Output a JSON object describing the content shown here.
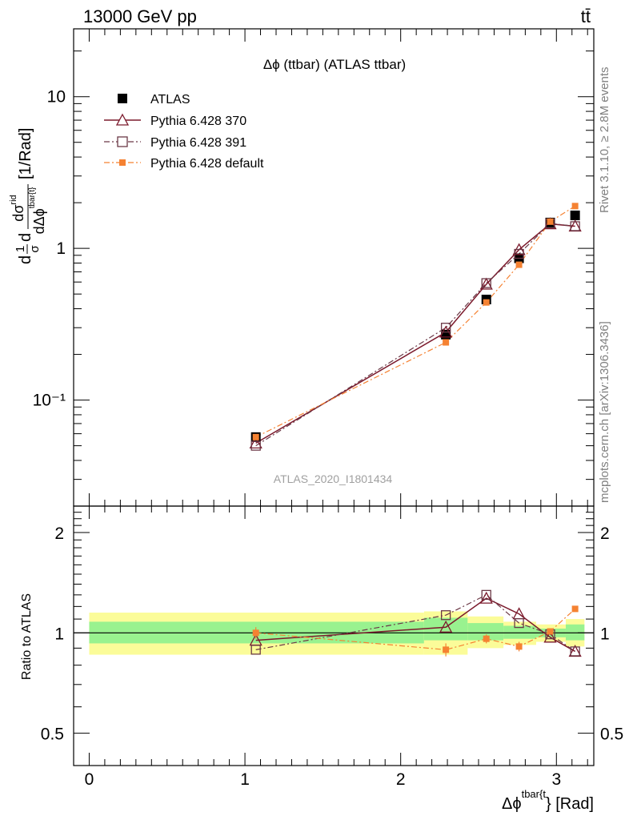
{
  "header": {
    "left": "13000 GeV pp",
    "right": "tt̄"
  },
  "side_labels": {
    "rivet": "Rivet 3.1.10, ≥ 2.8M events",
    "mcplots": "mcplots.cern.ch [arXiv:1306.3436]"
  },
  "watermark": "ATLAS_2020_I1801434",
  "chart_data": [
    {
      "type": "line",
      "title": "Δϕ (ttbar) (ATLAS ttbar)",
      "ylabel_parts": {
        "d1": "d",
        "frac1_num": "1",
        "frac1_den": "σ",
        "d2": "d",
        "frac2_num": "dσ",
        "frac2_num_sup": "rid",
        "frac2_den": "dΔϕ",
        "frac2_den_sub": "tbar{t}",
        "unit": "[1/Rad]"
      },
      "xlim": [
        -0.1,
        3.24
      ],
      "ylim": [
        0.02,
        28
      ],
      "yscale": "log",
      "yticks": [
        0.1,
        1,
        10
      ],
      "ytick_labels": [
        "10⁻¹",
        "1",
        "10"
      ],
      "legend_position": "top-left",
      "x": [
        1.07,
        2.29,
        2.55,
        2.76,
        2.96,
        3.12
      ],
      "series": [
        {
          "name": "ATLAS",
          "color": "#000000",
          "style": "data",
          "marker": "filled-square",
          "y": [
            0.057,
            0.27,
            0.46,
            0.86,
            1.48,
            1.65
          ]
        },
        {
          "name": "Pythia 6.428 370",
          "color": "#7b1a2c",
          "style": "solid",
          "marker": "open-triangle",
          "y": [
            0.052,
            0.28,
            0.58,
            0.98,
            1.45,
            1.4
          ]
        },
        {
          "name": "Pythia 6.428 391",
          "color": "#6b3846",
          "style": "dashdot",
          "marker": "open-square",
          "y": [
            0.05,
            0.3,
            0.59,
            0.92,
            1.46,
            1.4
          ]
        },
        {
          "name": "Pythia 6.428 default",
          "color": "#f58232",
          "style": "dashdot",
          "marker": "filled-small-square",
          "y": [
            0.057,
            0.24,
            0.44,
            0.78,
            1.5,
            1.9
          ]
        }
      ]
    },
    {
      "type": "line",
      "ylabel": "Ratio to ATLAS",
      "xlabel_main": "Δϕ",
      "xlabel_sup": "tbar{t",
      "xlabel_tail": "} [Rad]",
      "xlim": [
        -0.1,
        3.24
      ],
      "ylim": [
        0.4,
        2.4
      ],
      "yscale": "log",
      "yticks": [
        0.5,
        1,
        2
      ],
      "ytick_labels": [
        "0.5",
        "1",
        "2"
      ],
      "xticks": [
        0,
        1,
        2,
        3
      ],
      "xtick_labels": [
        "0",
        "1",
        "2",
        "3"
      ],
      "bands": {
        "colors": {
          "inner": "#99f28f",
          "outer": "#fbfc99"
        },
        "bins": [
          {
            "x0": 0.0,
            "x1": 2.15,
            "inner": [
              0.93,
              1.08
            ],
            "outer": [
              0.86,
              1.15
            ]
          },
          {
            "x0": 2.15,
            "x1": 2.43,
            "inner": [
              0.95,
              1.11
            ],
            "outer": [
              0.86,
              1.16
            ]
          },
          {
            "x0": 2.43,
            "x1": 2.66,
            "inner": [
              0.95,
              1.07
            ],
            "outer": [
              0.9,
              1.12
            ]
          },
          {
            "x0": 2.66,
            "x1": 2.87,
            "inner": [
              0.96,
              1.05
            ],
            "outer": [
              0.92,
              1.08
            ]
          },
          {
            "x0": 2.87,
            "x1": 3.06,
            "inner": [
              0.97,
              1.03
            ],
            "outer": [
              0.94,
              1.06
            ]
          },
          {
            "x0": 3.06,
            "x1": 3.18,
            "inner": [
              0.95,
              1.06
            ],
            "outer": [
              0.91,
              1.1
            ]
          }
        ]
      },
      "series": [
        {
          "name": "Pythia 6.428 370",
          "color": "#7b1a2c",
          "style": "solid",
          "marker": "open-triangle",
          "y": [
            0.95,
            1.04,
            1.27,
            1.14,
            0.97,
            0.88
          ]
        },
        {
          "name": "Pythia 6.428 391",
          "color": "#6b3846",
          "style": "dashdot",
          "marker": "open-square",
          "y": [
            0.89,
            1.13,
            1.3,
            1.07,
            0.99,
            0.88
          ]
        },
        {
          "name": "Pythia 6.428 default",
          "color": "#f58232",
          "style": "dashdot",
          "marker": "filled-small-square",
          "y": [
            1.0,
            0.89,
            0.96,
            0.91,
            1.01,
            1.18
          ],
          "yerr": [
            0.04,
            0.04,
            0.03,
            0.03,
            0.02,
            0.02
          ]
        }
      ]
    }
  ]
}
